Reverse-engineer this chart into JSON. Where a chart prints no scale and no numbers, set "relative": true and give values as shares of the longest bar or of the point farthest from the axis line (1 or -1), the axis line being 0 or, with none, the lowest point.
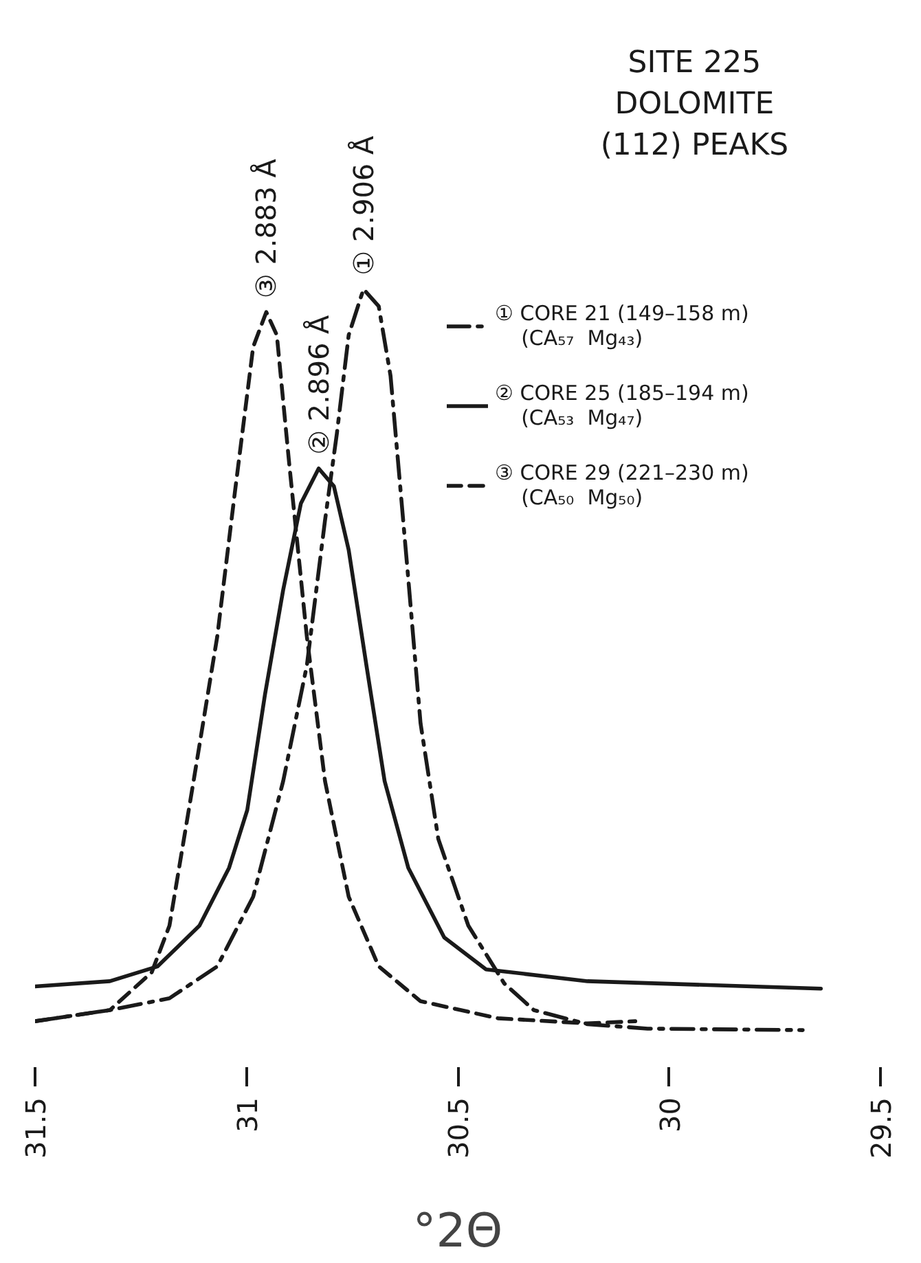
{
  "chart_data": {
    "type": "line",
    "relative": true,
    "title": "SITE 225\nDOLOMITE\n(112) PEAKS",
    "xlabel": "°2Θ",
    "xlim": [
      31.5,
      29.5
    ],
    "xticks": [
      31.5,
      31,
      30.5,
      30,
      29.5
    ],
    "legend": "top right",
    "grid": false,
    "tick_labels": "x",
    "series": [
      {
        "name": "① CORE 21 (149–158 m)\n    (CA₅₇  Mg₄₃)",
        "color": "#1a1a1a",
        "line_style": "dashdot",
        "x": [
          31.5,
          31.323,
          31.182,
          31.069,
          30.984,
          30.913,
          30.857,
          30.814,
          30.786,
          30.758,
          30.723,
          30.687,
          30.659,
          30.617,
          30.588,
          30.546,
          30.475,
          30.39,
          30.32,
          30.193,
          30.051,
          29.684
        ],
        "values": [
          0.012,
          0.027,
          0.043,
          0.086,
          0.18,
          0.336,
          0.492,
          0.688,
          0.805,
          0.938,
          1.0,
          0.977,
          0.883,
          0.609,
          0.414,
          0.258,
          0.141,
          0.063,
          0.027,
          0.008,
          0.002,
          0
        ]
      },
      {
        "name": "② CORE 25 (185–194 m)\n    (CA₅₃  Mg₄₇)",
        "color": "#1a1a1a",
        "line_style": "solid",
        "x": [
          31.5,
          31.323,
          31.21,
          31.111,
          31.041,
          30.998,
          30.956,
          30.913,
          30.871,
          30.829,
          30.793,
          30.758,
          30.716,
          30.673,
          30.617,
          30.532,
          30.433,
          30.193,
          29.641
        ],
        "values": [
          0.059,
          0.066,
          0.086,
          0.141,
          0.219,
          0.297,
          0.453,
          0.594,
          0.711,
          0.758,
          0.734,
          0.648,
          0.492,
          0.336,
          0.219,
          0.125,
          0.082,
          0.066,
          0.056
        ]
      },
      {
        "name": "③ CORE 29 (221–230 m)\n    (CA₅₀  Mg₅₀)",
        "color": "#1a1a1a",
        "line_style": "dashed",
        "x": [
          31.5,
          31.323,
          31.224,
          31.182,
          31.125,
          31.069,
          31.027,
          30.984,
          30.953,
          30.928,
          30.899,
          30.857,
          30.814,
          30.758,
          30.687,
          30.588,
          30.405,
          30.193,
          30.08
        ],
        "values": [
          0.012,
          0.027,
          0.078,
          0.141,
          0.336,
          0.531,
          0.727,
          0.922,
          0.969,
          0.938,
          0.766,
          0.531,
          0.336,
          0.18,
          0.086,
          0.039,
          0.016,
          0.009,
          0.012
        ]
      }
    ],
    "annotations": [
      {
        "text": "① 2.906 Å",
        "x": 30.723,
        "y": 1.0
      },
      {
        "text": "② 2.896 Å",
        "x": 30.829,
        "y": 0.758
      },
      {
        "text": "③ 2.883 Å",
        "x": 30.953,
        "y": 0.969
      }
    ]
  }
}
